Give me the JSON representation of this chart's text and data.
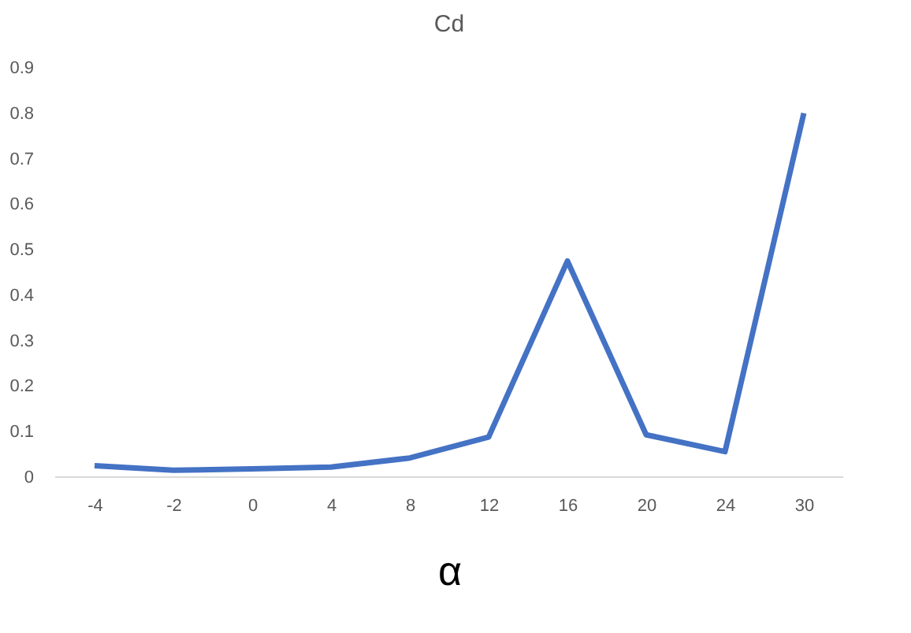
{
  "chart_data": {
    "type": "line",
    "title": "Cd",
    "xlabel": "α",
    "categories": [
      "-4",
      "-2",
      "0",
      "4",
      "8",
      "12",
      "16",
      "20",
      "24",
      "30"
    ],
    "series": [
      {
        "color": "#4472c4",
        "values": [
          0.025,
          0.015,
          0.018,
          0.022,
          0.042,
          0.088,
          0.475,
          0.093,
          0.056,
          0.8
        ]
      }
    ],
    "ylim": [
      0,
      0.9
    ],
    "yticks": [
      0,
      0.1,
      0.2,
      0.3,
      0.4,
      0.5,
      0.6,
      0.7,
      0.8,
      0.9
    ],
    "grid": false,
    "legend": false,
    "marker": "none",
    "line_style": "solid"
  }
}
